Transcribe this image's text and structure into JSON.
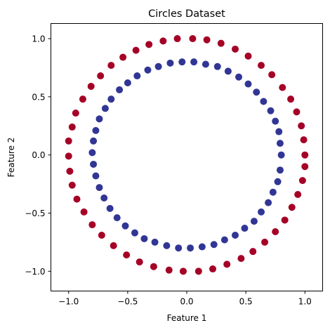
{
  "chart_data": {
    "type": "scatter",
    "title": "Circles Dataset",
    "xlabel": "Feature 1",
    "ylabel": "Feature 2",
    "xlim": [
      -1.15,
      1.15
    ],
    "ylim": [
      -1.17,
      1.13
    ],
    "xticks": [
      -1.0,
      -0.5,
      0.0,
      0.5,
      1.0
    ],
    "xtick_labels": [
      "−1.0",
      "−0.5",
      "0.0",
      "0.5",
      "1.0"
    ],
    "yticks": [
      -1.0,
      -0.5,
      0.0,
      0.5,
      1.0
    ],
    "ytick_labels": [
      "−1.0",
      "−0.5",
      "0.0",
      "0.5",
      "1.0"
    ],
    "grid": false,
    "legend": "none",
    "series": [
      {
        "color": "#a50026",
        "points": [
          [
            1.0,
            0.0
          ],
          [
            0.99,
            0.13
          ],
          [
            0.97,
            0.25
          ],
          [
            0.93,
            0.37
          ],
          [
            0.88,
            0.48
          ],
          [
            0.81,
            0.58
          ],
          [
            0.72,
            0.69
          ],
          [
            0.63,
            0.77
          ],
          [
            0.52,
            0.85
          ],
          [
            0.41,
            0.91
          ],
          [
            0.29,
            0.96
          ],
          [
            0.17,
            0.99
          ],
          [
            0.05,
            1.0
          ],
          [
            -0.08,
            1.0
          ],
          [
            -0.2,
            0.98
          ],
          [
            -0.32,
            0.95
          ],
          [
            -0.43,
            0.9
          ],
          [
            -0.54,
            0.84
          ],
          [
            -0.64,
            0.77
          ],
          [
            -0.73,
            0.68
          ],
          [
            -0.81,
            0.59
          ],
          [
            -0.88,
            0.48
          ],
          [
            -0.94,
            0.36
          ],
          [
            -0.97,
            0.24
          ],
          [
            -1.0,
            0.12
          ],
          [
            -1.0,
            -0.01
          ],
          [
            -0.99,
            -0.14
          ],
          [
            -0.97,
            -0.26
          ],
          [
            -0.93,
            -0.38
          ],
          [
            -0.87,
            -0.49
          ],
          [
            -0.8,
            -0.6
          ],
          [
            -0.72,
            -0.69
          ],
          [
            -0.62,
            -0.78
          ],
          [
            -0.51,
            -0.86
          ],
          [
            -0.4,
            -0.92
          ],
          [
            -0.28,
            -0.96
          ],
          [
            -0.15,
            -0.99
          ],
          [
            -0.03,
            -1.0
          ],
          [
            0.1,
            -1.0
          ],
          [
            0.22,
            -0.98
          ],
          [
            0.34,
            -0.94
          ],
          [
            0.46,
            -0.89
          ],
          [
            0.56,
            -0.83
          ],
          [
            0.66,
            -0.75
          ],
          [
            0.75,
            -0.66
          ],
          [
            0.83,
            -0.56
          ],
          [
            0.89,
            -0.45
          ],
          [
            0.94,
            -0.34
          ],
          [
            0.98,
            -0.22
          ],
          [
            1.0,
            -0.1
          ]
        ]
      },
      {
        "color": "#313695",
        "points": [
          [
            0.8,
            0.0
          ],
          [
            0.79,
            0.1
          ],
          [
            0.78,
            0.2
          ],
          [
            0.75,
            0.29
          ],
          [
            0.71,
            0.38
          ],
          [
            0.65,
            0.46
          ],
          [
            0.59,
            0.54
          ],
          [
            0.52,
            0.61
          ],
          [
            0.44,
            0.67
          ],
          [
            0.35,
            0.72
          ],
          [
            0.26,
            0.76
          ],
          [
            0.16,
            0.78
          ],
          [
            0.06,
            0.8
          ],
          [
            -0.04,
            0.8
          ],
          [
            -0.14,
            0.79
          ],
          [
            -0.24,
            0.76
          ],
          [
            -0.33,
            0.73
          ],
          [
            -0.42,
            0.68
          ],
          [
            -0.5,
            0.62
          ],
          [
            -0.57,
            0.56
          ],
          [
            -0.64,
            0.48
          ],
          [
            -0.69,
            0.4
          ],
          [
            -0.74,
            0.31
          ],
          [
            -0.77,
            0.21
          ],
          [
            -0.79,
            0.12
          ],
          [
            -0.8,
            0.02
          ],
          [
            -0.79,
            -0.08
          ],
          [
            -0.77,
            -0.18
          ],
          [
            -0.74,
            -0.28
          ],
          [
            -0.7,
            -0.37
          ],
          [
            -0.65,
            -0.46
          ],
          [
            -0.59,
            -0.54
          ],
          [
            -0.52,
            -0.61
          ],
          [
            -0.44,
            -0.67
          ],
          [
            -0.36,
            -0.72
          ],
          [
            -0.27,
            -0.75
          ],
          [
            -0.17,
            -0.78
          ],
          [
            -0.07,
            -0.8
          ],
          [
            0.03,
            -0.8
          ],
          [
            0.13,
            -0.79
          ],
          [
            0.23,
            -0.77
          ],
          [
            0.32,
            -0.73
          ],
          [
            0.41,
            -0.69
          ],
          [
            0.49,
            -0.63
          ],
          [
            0.57,
            -0.57
          ],
          [
            0.63,
            -0.49
          ],
          [
            0.69,
            -0.41
          ],
          [
            0.73,
            -0.32
          ],
          [
            0.77,
            -0.23
          ],
          [
            0.79,
            -0.13
          ]
        ]
      }
    ]
  }
}
